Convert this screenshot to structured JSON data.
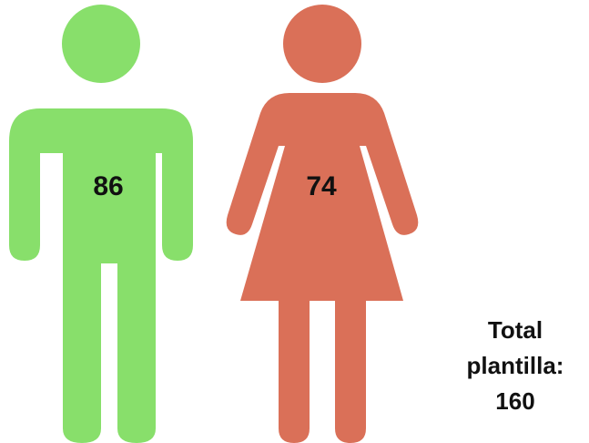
{
  "colors": {
    "male": "#88df6b",
    "female": "#da7058"
  },
  "icons": {
    "male": "man-icon",
    "female": "woman-icon"
  },
  "chart_data": {
    "type": "pictogram",
    "categories": [
      "male",
      "female"
    ],
    "values": [
      86,
      74
    ],
    "total_line1": "Total",
    "total_line2": "plantilla:",
    "total_value": "160"
  }
}
